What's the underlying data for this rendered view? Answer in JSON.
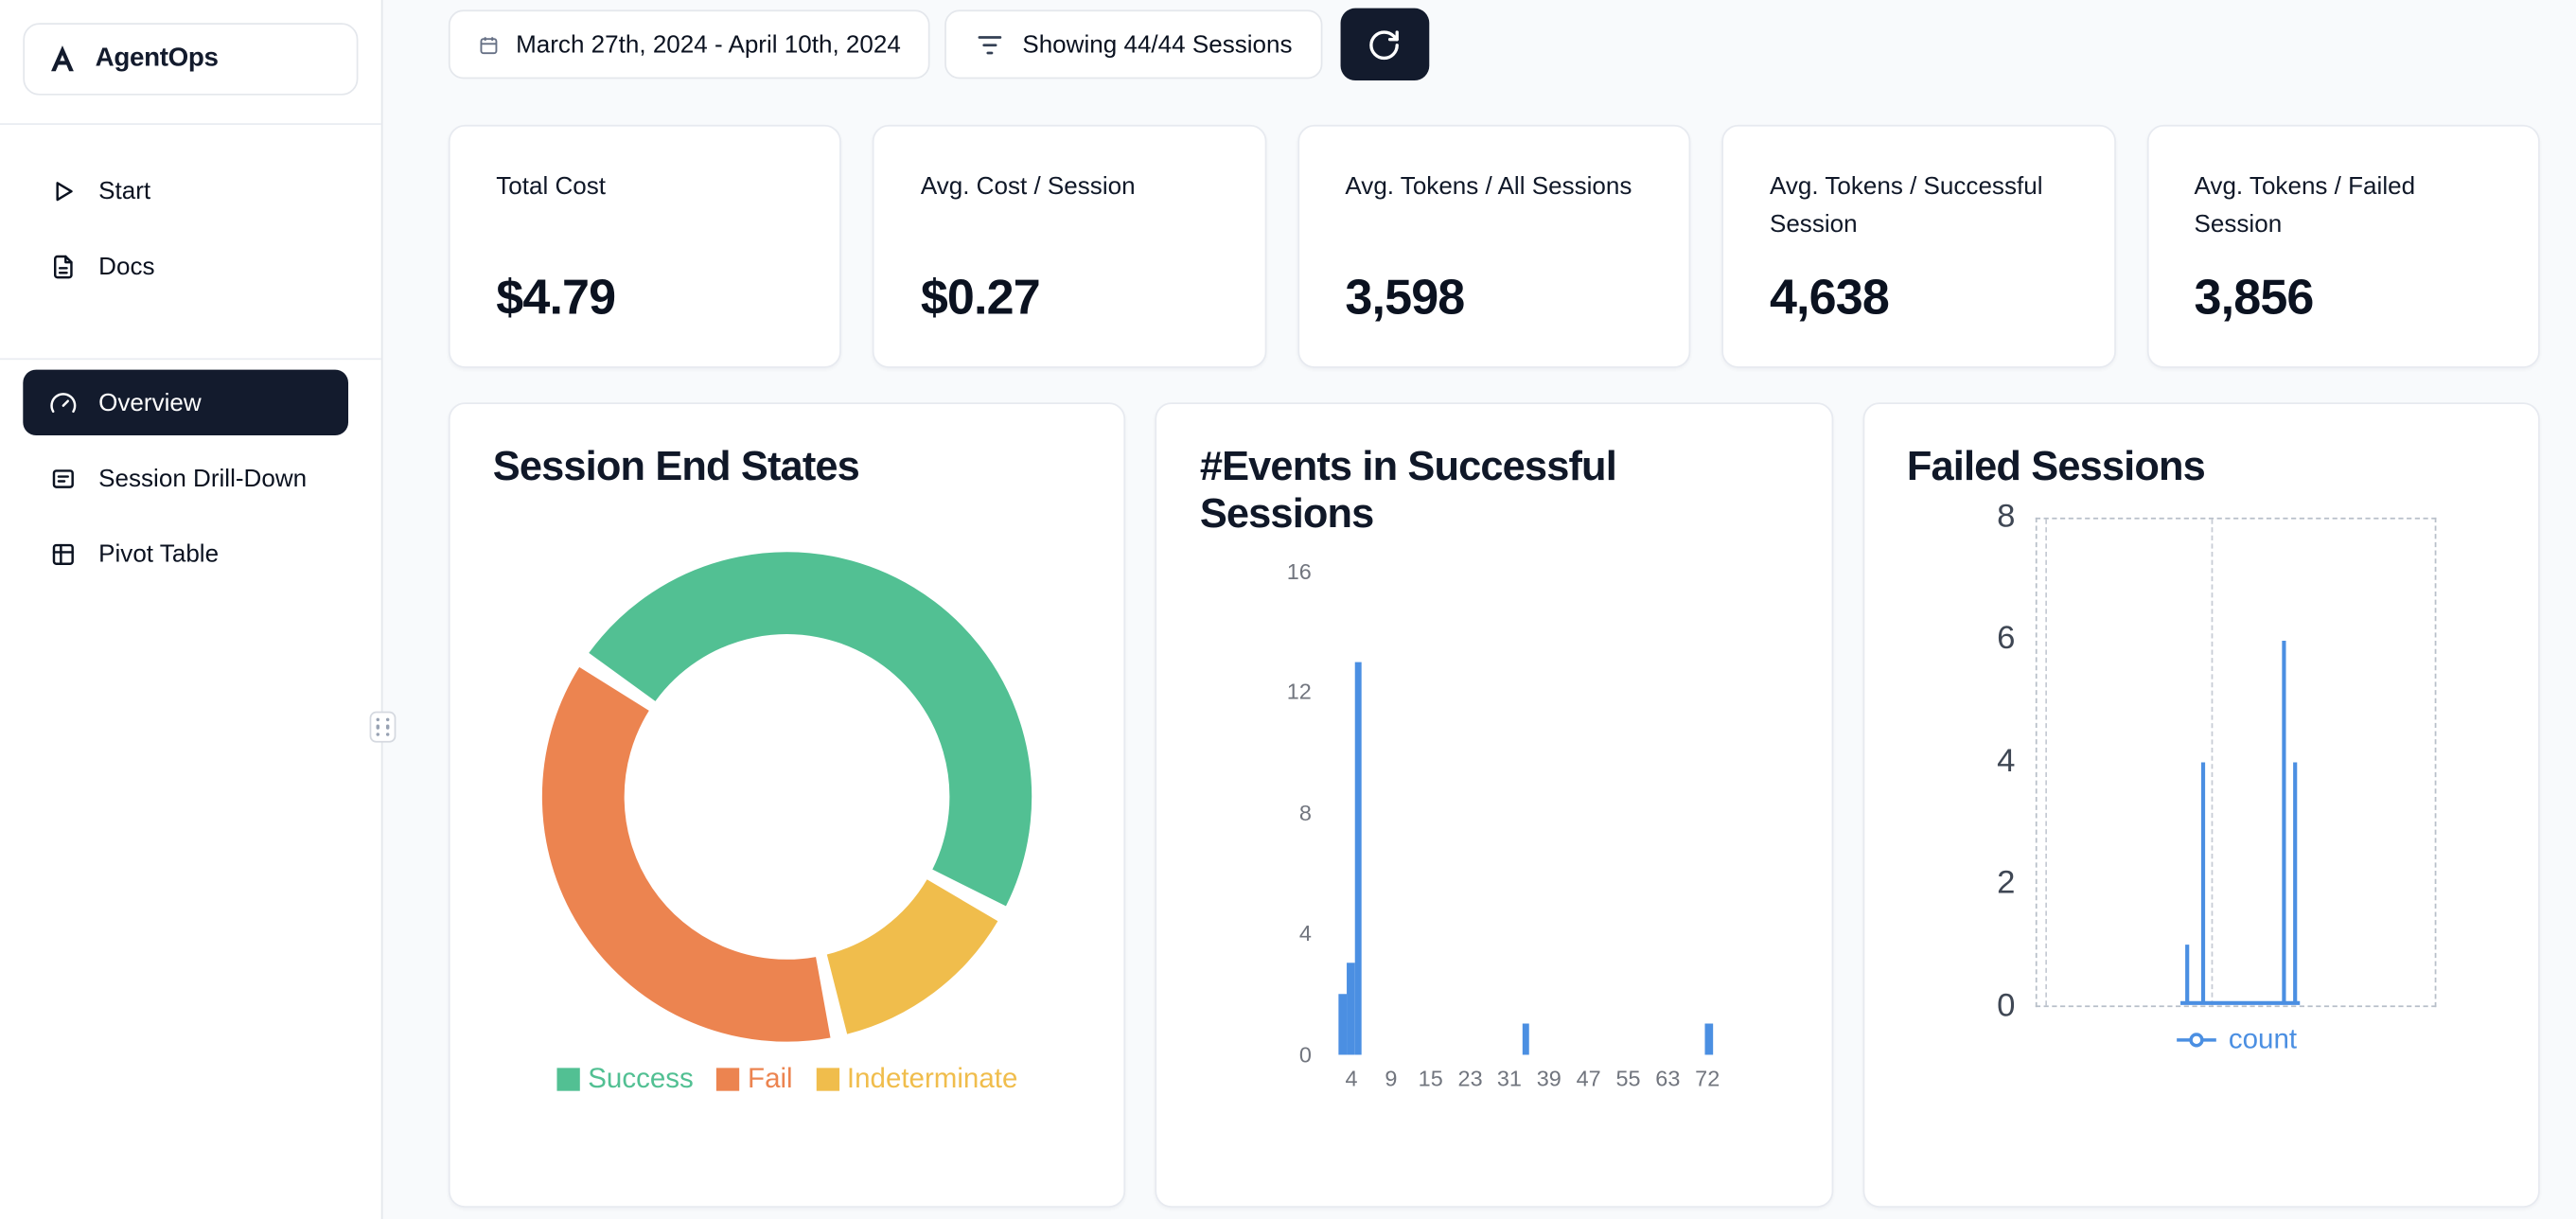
{
  "app": {
    "name": "AgentOps"
  },
  "sidebar": {
    "items": [
      {
        "label": "Start"
      },
      {
        "label": "Docs"
      },
      {
        "label": "Overview",
        "active": true
      },
      {
        "label": "Session Drill-Down"
      },
      {
        "label": "Pivot Table"
      }
    ]
  },
  "topbar": {
    "date_range": "March 27th, 2024 - April 10th, 2024",
    "sessions_filter": "Showing 44/44 Sessions"
  },
  "stats": [
    {
      "label": "Total Cost",
      "value": "$4.79"
    },
    {
      "label": "Avg. Cost / Session",
      "value": "$0.27"
    },
    {
      "label": "Avg. Tokens / All Sessions",
      "value": "3,598"
    },
    {
      "label": "Avg. Tokens / Successful Session",
      "value": "4,638"
    },
    {
      "label": "Avg. Tokens / Failed Session",
      "value": "3,856"
    }
  ],
  "colors": {
    "navy": "#131b2d",
    "accent_blue": "#4b8fe2",
    "success_green": "#52c093",
    "fail_orange": "#ec8450",
    "indeterminate_yellow": "#f0bd4c",
    "page_bg": "#f8fafc",
    "card_border": "#e7eaf0"
  },
  "chart_data": [
    {
      "type": "pie",
      "title": "Session End States",
      "donut": true,
      "start_angle_deg": -54,
      "segments": [
        {
          "label": "Success",
          "percent": 49,
          "color": "#52c093"
        },
        {
          "label": "Fail",
          "percent": 38,
          "color": "#ec8450"
        },
        {
          "label": "Indeterminate",
          "percent": 13,
          "color": "#f0bd4c"
        }
      ],
      "draw_order": [
        0,
        2,
        1
      ],
      "legend_position": "bottom"
    },
    {
      "type": "bar",
      "title": "#Events in Successful Sessions",
      "ylim": [
        0,
        16
      ],
      "yticks": [
        0,
        4,
        8,
        12,
        16
      ],
      "xtick_labels": [
        "4",
        "9",
        "15",
        "23",
        "31",
        "39",
        "47",
        "55",
        "63",
        "72"
      ],
      "xtick_pos_pct": [
        5.1,
        13.7,
        22.3,
        30.9,
        39.4,
        48,
        56.6,
        65.2,
        73.8,
        82.4
      ],
      "bar_color": "#4b8fe2",
      "bars": [
        {
          "x": 3,
          "count": 2,
          "pos_pct": 3.2
        },
        {
          "x": 4,
          "count": 3,
          "pos_pct": 4.9
        },
        {
          "x": 5,
          "count": 13,
          "pos_pct": 6.6
        },
        {
          "x": 34,
          "count": 1,
          "pos_pct": 43
        },
        {
          "x": 72,
          "count": 1,
          "pos_pct": 82.7
        }
      ],
      "grid": false
    },
    {
      "type": "line",
      "title": "Failed Sessions",
      "ylim": [
        0,
        8
      ],
      "yticks": [
        0,
        2,
        4,
        6,
        8
      ],
      "grid_vlines_pct": [
        2.4,
        43.7
      ],
      "baseline_span_pct": [
        36,
        66
      ],
      "series": [
        {
          "name": "count",
          "color": "#4b8fe2",
          "spikes": [
            {
              "pos_pct": 37.7,
              "value": 1
            },
            {
              "pos_pct": 41.7,
              "value": 4
            },
            {
              "pos_pct": 62,
              "value": 6
            },
            {
              "pos_pct": 64.8,
              "value": 4
            }
          ]
        }
      ],
      "legend": {
        "label": "count",
        "position": "bottom"
      }
    }
  ]
}
